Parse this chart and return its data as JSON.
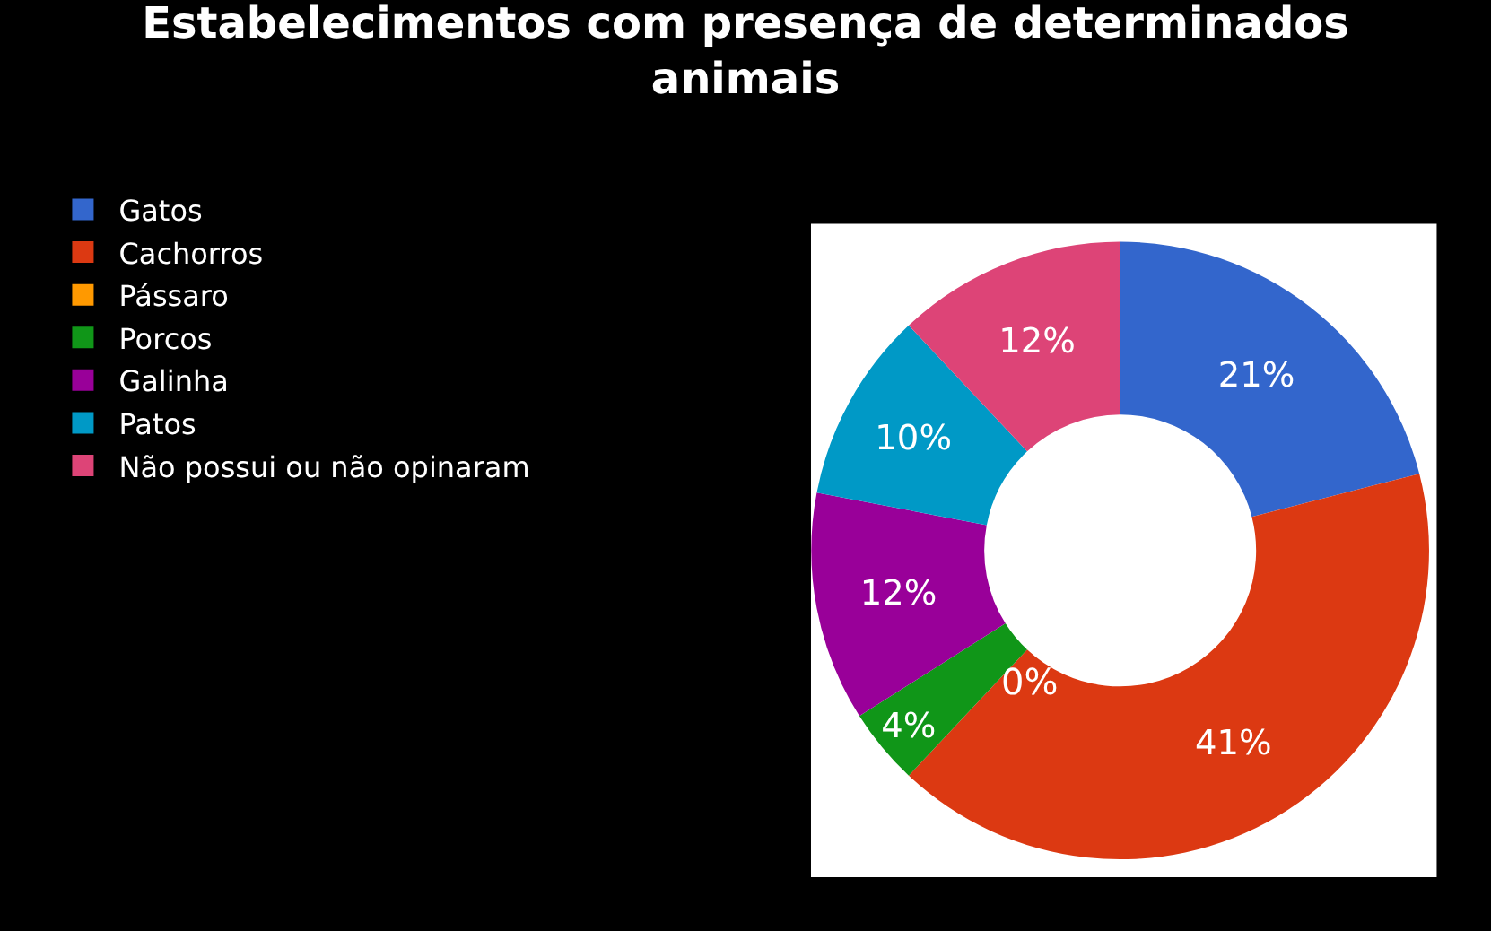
{
  "chart_data": {
    "type": "donut",
    "title": "Estabelecimentos com presença de determinados animais",
    "categories": [
      "Gatos",
      "Cachorros",
      "Pássaro",
      "Porcos",
      "Galinha",
      "Patos",
      "Não possui ou não opinaram"
    ],
    "values": [
      21,
      41,
      0,
      4,
      12,
      10,
      12
    ],
    "value_labels": [
      "21%",
      "41%",
      "0%",
      "4%",
      "12%",
      "10%",
      "12%"
    ],
    "colors": [
      "#3366cc",
      "#dc3912",
      "#ff9900",
      "#109618",
      "#990099",
      "#0099c6",
      "#dd4477"
    ],
    "legend": "left"
  }
}
